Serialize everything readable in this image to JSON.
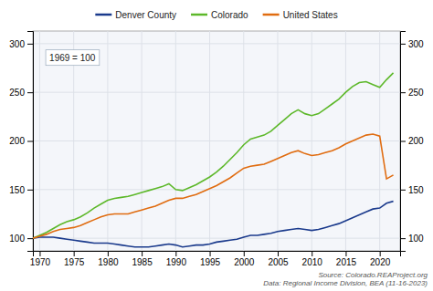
{
  "chart_data": {
    "type": "line",
    "annotations": [
      "1969 = 100",
      "Source: Colorado.REAProject.org\nData: Regional Income Division, BEA (11-16-2023)"
    ],
    "x": [
      1969,
      1970,
      1971,
      1972,
      1973,
      1974,
      1975,
      1976,
      1977,
      1978,
      1979,
      1980,
      1981,
      1982,
      1983,
      1984,
      1985,
      1986,
      1987,
      1988,
      1989,
      1990,
      1991,
      1992,
      1993,
      1994,
      1995,
      1996,
      1997,
      1998,
      1999,
      2000,
      2001,
      2002,
      2003,
      2004,
      2005,
      2006,
      2007,
      2008,
      2009,
      2010,
      2011,
      2012,
      2013,
      2014,
      2015,
      2016,
      2017,
      2018,
      2019,
      2020,
      2021,
      2022
    ],
    "series": [
      {
        "name": "Denver County",
        "color": "#1a3a8c",
        "values": [
          100,
          101,
          101,
          101,
          100,
          99,
          98,
          97,
          96,
          95,
          95,
          95,
          94,
          93,
          92,
          91,
          91,
          91,
          92,
          93,
          94,
          93,
          91,
          92,
          93,
          93,
          94,
          96,
          97,
          98,
          99,
          101,
          103,
          103,
          104,
          105,
          107,
          108,
          109,
          110,
          109,
          108,
          109,
          111,
          113,
          115,
          118,
          121,
          124,
          127,
          130,
          131,
          136,
          138
        ]
      },
      {
        "name": "Colorado",
        "color": "#5db82a",
        "values": [
          100,
          103,
          106,
          110,
          114,
          117,
          119,
          122,
          126,
          131,
          135,
          139,
          141,
          142,
          143,
          145,
          147,
          149,
          151,
          153,
          156,
          150,
          149,
          152,
          155,
          159,
          163,
          168,
          174,
          181,
          188,
          196,
          202,
          204,
          206,
          210,
          216,
          222,
          228,
          232,
          228,
          226,
          228,
          233,
          238,
          243,
          250,
          256,
          260,
          261,
          258,
          255,
          263,
          270
        ]
      },
      {
        "name": "United States",
        "color": "#e06c10",
        "values": [
          100,
          102,
          104,
          107,
          109,
          110,
          111,
          113,
          116,
          119,
          122,
          124,
          125,
          125,
          125,
          127,
          129,
          131,
          133,
          136,
          139,
          141,
          141,
          143,
          145,
          148,
          151,
          154,
          158,
          162,
          167,
          172,
          174,
          175,
          176,
          179,
          182,
          185,
          188,
          190,
          187,
          185,
          186,
          188,
          190,
          193,
          197,
          200,
          203,
          206,
          207,
          205,
          161,
          165
        ]
      }
    ],
    "xlim": [
      1969,
      2023
    ],
    "xticks": [
      1970,
      1975,
      1980,
      1985,
      1990,
      1995,
      2000,
      2005,
      2010,
      2015,
      2020
    ],
    "ylim": [
      87,
      313
    ],
    "yticks": [
      100,
      150,
      200,
      250,
      300
    ],
    "y2lim": [
      87,
      313
    ],
    "y2ticks": [
      100,
      150,
      200,
      250,
      300
    ],
    "grid": true,
    "legend": "top"
  }
}
